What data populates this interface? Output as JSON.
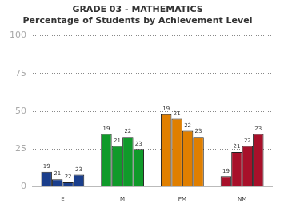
{
  "chart_data": {
    "type": "bar",
    "title": "GRADE 03 - MATHEMATICS",
    "subtitle": "Percentage of Students by Achievement Level",
    "categories": [
      "E",
      "M",
      "PM",
      "NM"
    ],
    "series": [
      {
        "name": "19",
        "values": [
          10,
          35,
          48,
          7
        ]
      },
      {
        "name": "21",
        "values": [
          5,
          27,
          45,
          23
        ]
      },
      {
        "name": "22",
        "values": [
          3,
          33,
          37,
          27
        ]
      },
      {
        "name": "23",
        "values": [
          8,
          25,
          33,
          35
        ]
      }
    ],
    "colors": [
      "#1a3e8c",
      "#109a2a",
      "#e07f00",
      "#a8102a"
    ],
    "ylim": [
      0,
      100
    ],
    "yticks": [
      0,
      25,
      50,
      75,
      100
    ],
    "grid": true
  }
}
